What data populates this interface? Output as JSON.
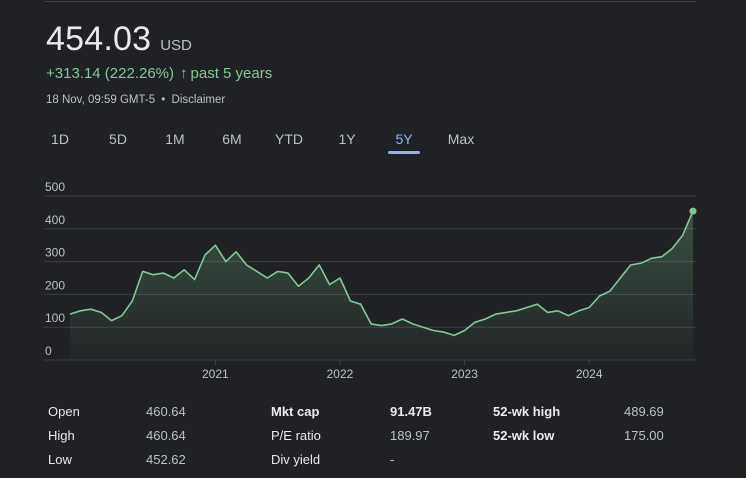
{
  "quote": {
    "price": "454.03",
    "currency": "USD",
    "change": "+313.14 (222.26%)",
    "arrow": "↑",
    "period": "past 5 years",
    "timestamp": "18 Nov, 09:59 GMT-5",
    "separator": "•",
    "disclaimer": "Disclaimer"
  },
  "ranges": [
    {
      "label": "1D",
      "active": false
    },
    {
      "label": "5D",
      "active": false
    },
    {
      "label": "1M",
      "active": false
    },
    {
      "label": "6M",
      "active": false
    },
    {
      "label": "YTD",
      "active": false
    },
    {
      "label": "1Y",
      "active": false
    },
    {
      "label": "5Y",
      "active": true
    },
    {
      "label": "Max",
      "active": false
    }
  ],
  "colors": {
    "line": "#81c995",
    "active_tab": "#8ab4f8",
    "grid": "#3c4043",
    "background": "#202124"
  },
  "chart_data": {
    "type": "area",
    "x_tick_labels": [
      "2021",
      "2022",
      "2023",
      "2024"
    ],
    "y_tick_labels": [
      "0",
      "100",
      "200",
      "300",
      "400",
      "500"
    ],
    "ylim": [
      0,
      500
    ],
    "grid": true,
    "x": [
      "2019-11",
      "2019-12",
      "2020-01",
      "2020-02",
      "2020-03",
      "2020-04",
      "2020-05",
      "2020-06",
      "2020-07",
      "2020-08",
      "2020-09",
      "2020-10",
      "2020-11",
      "2020-12",
      "2021-01",
      "2021-02",
      "2021-03",
      "2021-04",
      "2021-05",
      "2021-06",
      "2021-07",
      "2021-08",
      "2021-09",
      "2021-10",
      "2021-11",
      "2021-12",
      "2022-01",
      "2022-02",
      "2022-03",
      "2022-04",
      "2022-05",
      "2022-06",
      "2022-07",
      "2022-08",
      "2022-09",
      "2022-10",
      "2022-11",
      "2022-12",
      "2023-01",
      "2023-02",
      "2023-03",
      "2023-04",
      "2023-05",
      "2023-06",
      "2023-07",
      "2023-08",
      "2023-09",
      "2023-10",
      "2023-11",
      "2023-12",
      "2024-01",
      "2024-02",
      "2024-03",
      "2024-04",
      "2024-05",
      "2024-06",
      "2024-07",
      "2024-08",
      "2024-09",
      "2024-10",
      "2024-11"
    ],
    "series": [
      {
        "values": [
          140,
          150,
          155,
          145,
          120,
          135,
          180,
          270,
          260,
          265,
          250,
          275,
          245,
          320,
          350,
          300,
          330,
          290,
          270,
          250,
          270,
          265,
          225,
          250,
          290,
          230,
          250,
          180,
          170,
          110,
          105,
          110,
          125,
          110,
          100,
          90,
          85,
          75,
          90,
          115,
          125,
          140,
          145,
          150,
          160,
          170,
          145,
          150,
          135,
          150,
          160,
          195,
          210,
          250,
          290,
          295,
          310,
          315,
          340,
          380,
          454
        ]
      }
    ]
  },
  "stats": [
    {
      "label": "Open",
      "value": "460.64"
    },
    {
      "label": "High",
      "value": "460.64"
    },
    {
      "label": "Low",
      "value": "452.62"
    },
    {
      "label": "Mkt cap",
      "value": "91.47B"
    },
    {
      "label": "P/E ratio",
      "value": "189.97"
    },
    {
      "label": "Div yield",
      "value": "-"
    },
    {
      "label": "52-wk high",
      "value": "489.69"
    },
    {
      "label": "52-wk low",
      "value": "175.00"
    }
  ]
}
